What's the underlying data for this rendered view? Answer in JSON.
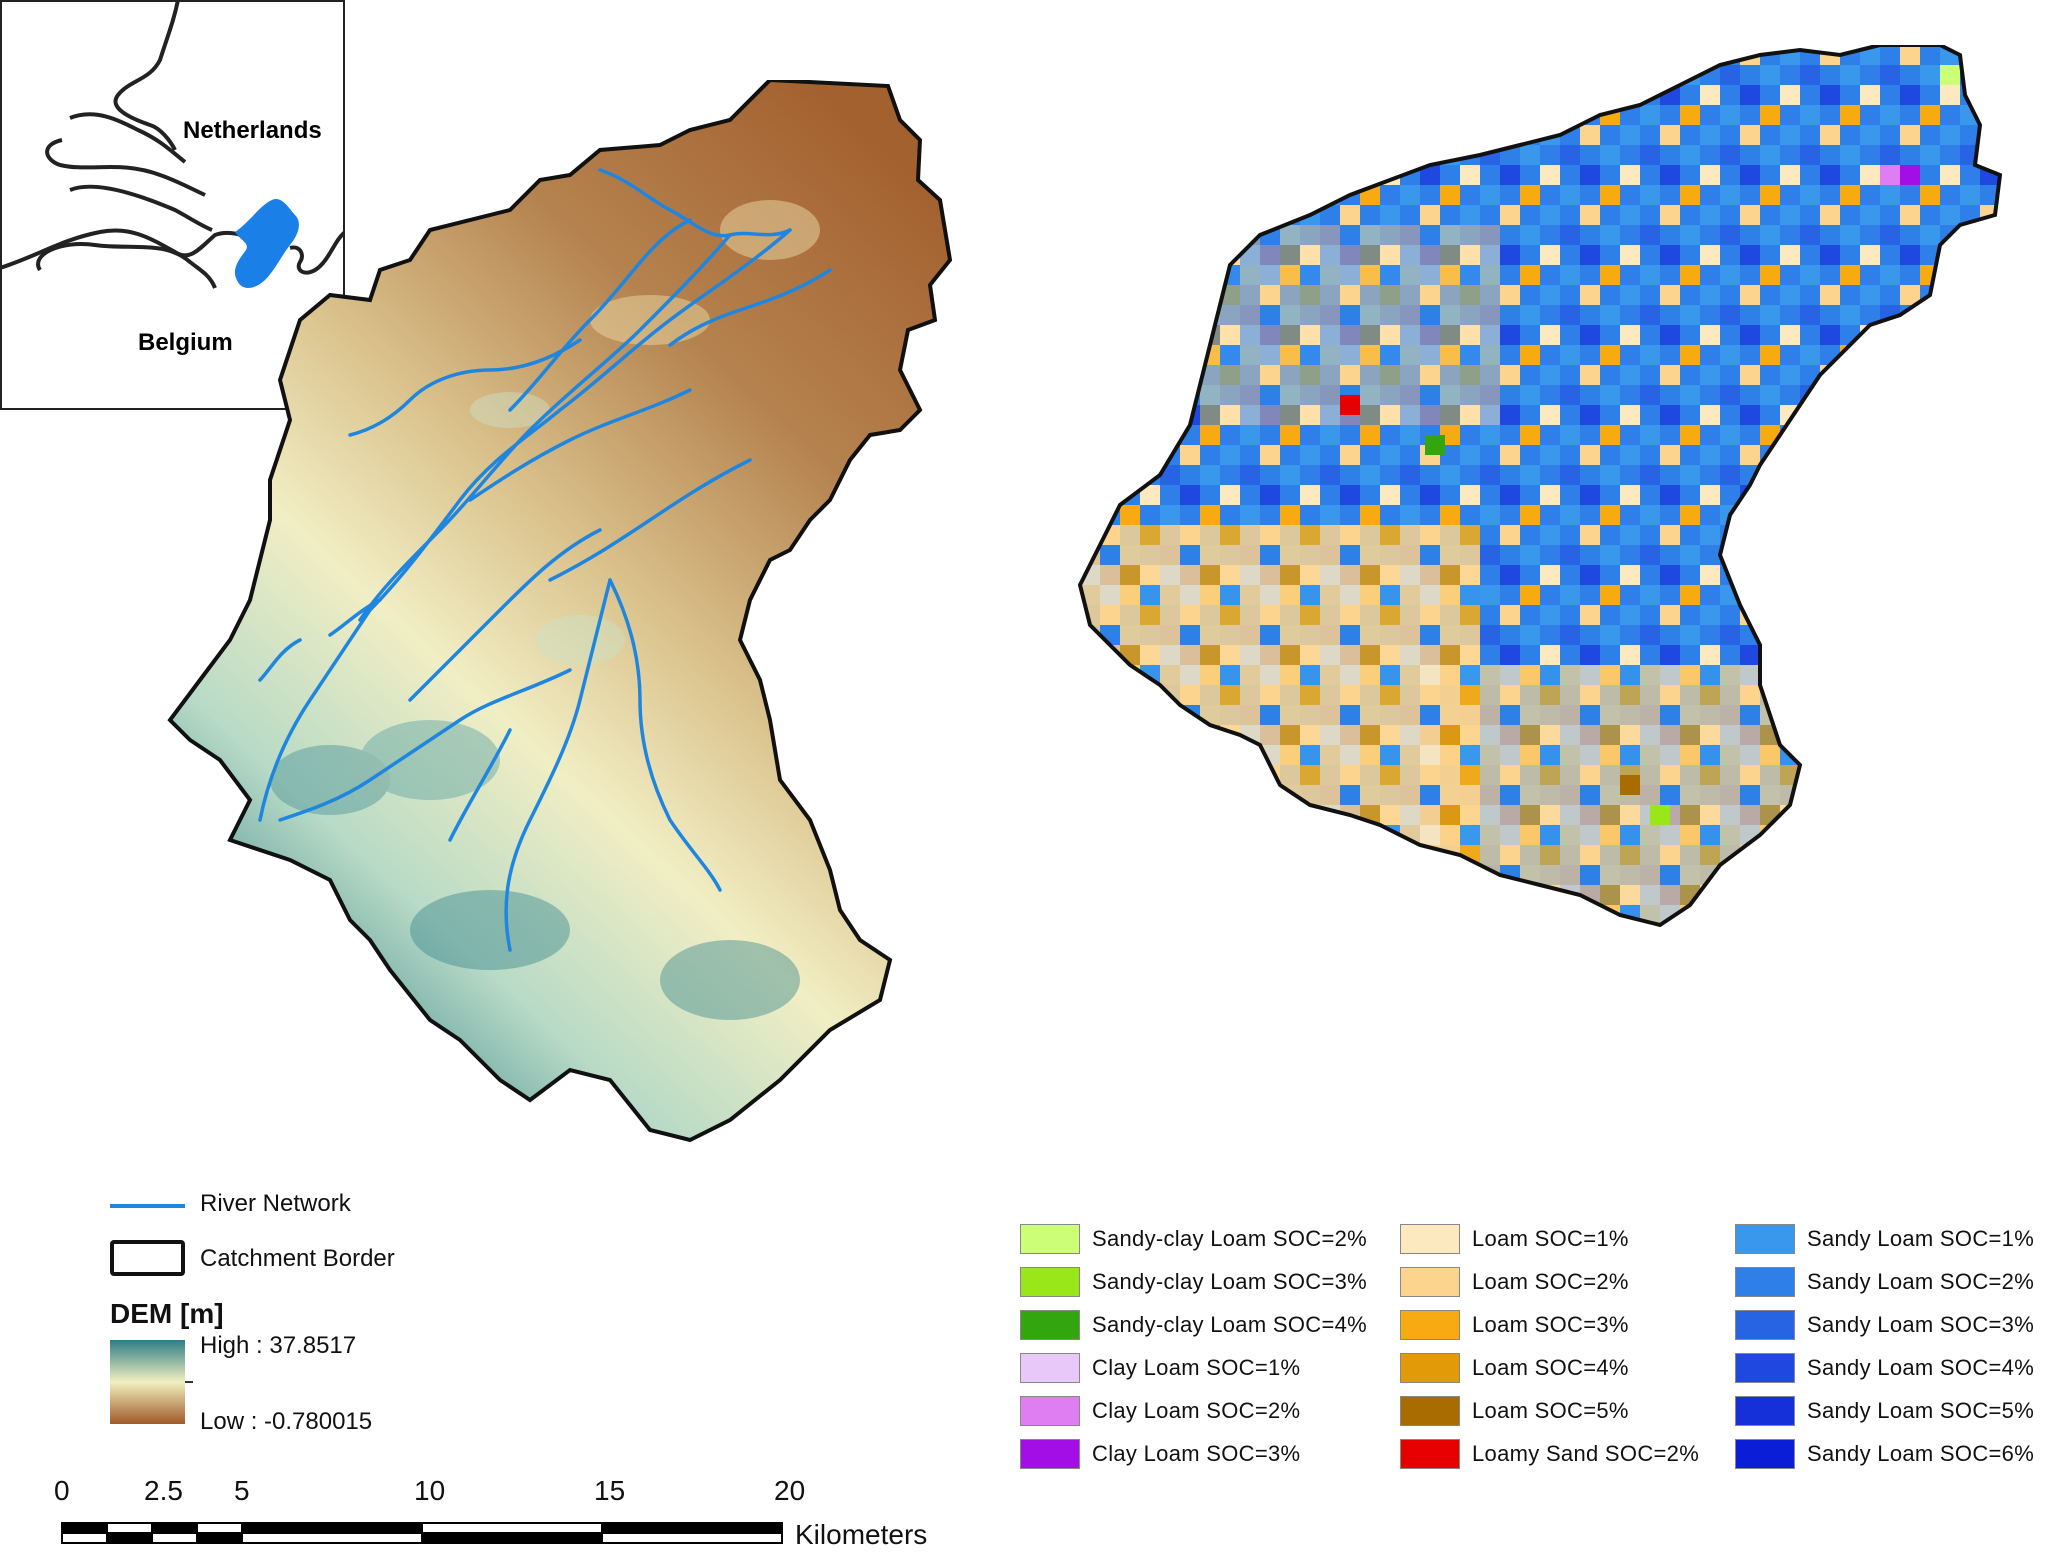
{
  "inset": {
    "labels": {
      "netherlands": "Netherlands",
      "belgium": "Belgium"
    }
  },
  "dem_legend": {
    "river_label": "River Network",
    "border_label": "Catchment Border",
    "title": "DEM [m]",
    "high_label": "High : 37.8517",
    "low_label": "Low : -0.780015",
    "colors": {
      "high": "#2e7d86",
      "mid": "#f2f0c0",
      "low": "#a05a28",
      "river": "#1f86e0"
    }
  },
  "soil_legend": {
    "columns": [
      [
        {
          "label": "Sandy-clay Loam SOC=2%",
          "color": "#ccff77"
        },
        {
          "label": "Sandy-clay Loam SOC=3%",
          "color": "#99e619"
        },
        {
          "label": "Sandy-clay Loam SOC=4%",
          "color": "#33a60f"
        },
        {
          "label": "Clay Loam SOC=1%",
          "color": "#e8c8f8"
        },
        {
          "label": "Clay Loam SOC=2%",
          "color": "#de7ef2"
        },
        {
          "label": "Clay Loam SOC=3%",
          "color": "#a30de6"
        }
      ],
      [
        {
          "label": "Loam SOC=1%",
          "color": "#fde9c0"
        },
        {
          "label": "Loam SOC=2%",
          "color": "#fcd48e"
        },
        {
          "label": "Loam SOC=3%",
          "color": "#f7aa12"
        },
        {
          "label": "Loam SOC=4%",
          "color": "#e39a09"
        },
        {
          "label": "Loam SOC=5%",
          "color": "#a86c00"
        },
        {
          "label": "Loamy Sand SOC=2%",
          "color": "#e60000"
        }
      ],
      [
        {
          "label": "Sandy Loam SOC=1%",
          "color": "#3a98ec"
        },
        {
          "label": "Sandy Loam SOC=2%",
          "color": "#2e7fe8"
        },
        {
          "label": "Sandy Loam SOC=3%",
          "color": "#2664e4"
        },
        {
          "label": "Sandy Loam SOC=4%",
          "color": "#1e48e0"
        },
        {
          "label": "Sandy Loam SOC=5%",
          "color": "#1530d8"
        },
        {
          "label": "Sandy Loam SOC=6%",
          "color": "#0a1ed8"
        }
      ]
    ]
  },
  "scale_bar": {
    "ticks": [
      "0",
      "2.5",
      "5",
      "10",
      "15",
      "20"
    ],
    "tick_values": [
      0,
      2.5,
      5,
      10,
      15,
      20
    ],
    "unit": "Kilometers"
  }
}
